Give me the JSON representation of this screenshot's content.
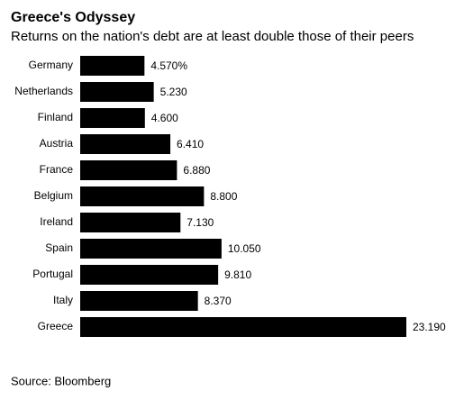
{
  "chart_data": {
    "type": "bar",
    "orientation": "horizontal",
    "title": "Greece's Odyssey",
    "subtitle": "Returns on the nation's debt are at least double those of their peers",
    "categories": [
      "Germany",
      "Netherlands",
      "Finland",
      "Austria",
      "France",
      "Belgium",
      "Ireland",
      "Spain",
      "Portugal",
      "Italy",
      "Greece"
    ],
    "values": [
      4.57,
      5.23,
      4.6,
      6.41,
      6.88,
      8.8,
      7.13,
      10.05,
      9.81,
      8.37,
      23.19
    ],
    "value_labels": [
      "4.570%",
      "5.230",
      "4.600",
      "6.410",
      "6.880",
      "8.800",
      "7.130",
      "10.050",
      "9.810",
      "8.370",
      "23.190"
    ],
    "color": "#000000",
    "source": "Source: Bloomberg"
  }
}
